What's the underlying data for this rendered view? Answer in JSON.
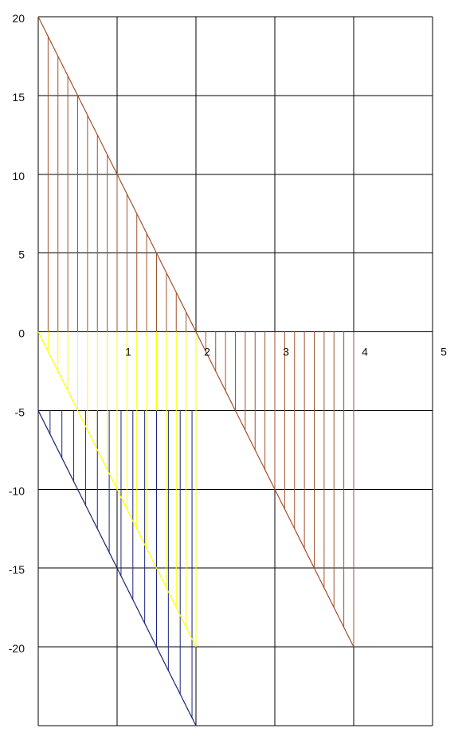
{
  "chart_data": {
    "type": "line",
    "title": "",
    "xlabel": "",
    "ylabel": "",
    "grid": true,
    "xlim": [
      0,
      5
    ],
    "ylim": [
      -25,
      20
    ],
    "grid_x": [
      0,
      1,
      2,
      3,
      4,
      5
    ],
    "grid_y": [
      20,
      15,
      10,
      5,
      0,
      -5,
      -10,
      -15,
      -20,
      -25
    ],
    "x_ticks": [
      {
        "value": 1,
        "label": "1"
      },
      {
        "value": 2,
        "label": "2"
      },
      {
        "value": 3,
        "label": "3"
      },
      {
        "value": 4,
        "label": "4"
      },
      {
        "value": 5,
        "label": "5"
      }
    ],
    "y_ticks": [
      {
        "value": 20,
        "label": "20"
      },
      {
        "value": 15,
        "label": "15"
      },
      {
        "value": 10,
        "label": "10"
      },
      {
        "value": 5,
        "label": "5"
      },
      {
        "value": 0,
        "label": "0"
      },
      {
        "value": -5,
        "label": "-5"
      },
      {
        "value": -10,
        "label": "-10"
      },
      {
        "value": -15,
        "label": "-15"
      },
      {
        "value": -20,
        "label": "-20"
      }
    ],
    "series": [
      {
        "color": "#a0522d",
        "x": [
          0,
          2
        ],
        "y": [
          20,
          0
        ],
        "fill_to": 0,
        "hatch_step": 0.125
      },
      {
        "color": "#a0522d",
        "x": [
          2,
          4
        ],
        "y": [
          0,
          -20
        ],
        "fill_to": 0,
        "hatch_step": 0.125
      },
      {
        "color": "#ffff00",
        "x": [
          0,
          2
        ],
        "y": [
          0,
          -20
        ],
        "fill_to": 0,
        "hatch_step": 0.125
      },
      {
        "color": "#1a237e",
        "x": [
          0,
          2
        ],
        "y": [
          -5,
          -25
        ],
        "fill_to": -5,
        "hatch_step": 0.15
      }
    ]
  }
}
